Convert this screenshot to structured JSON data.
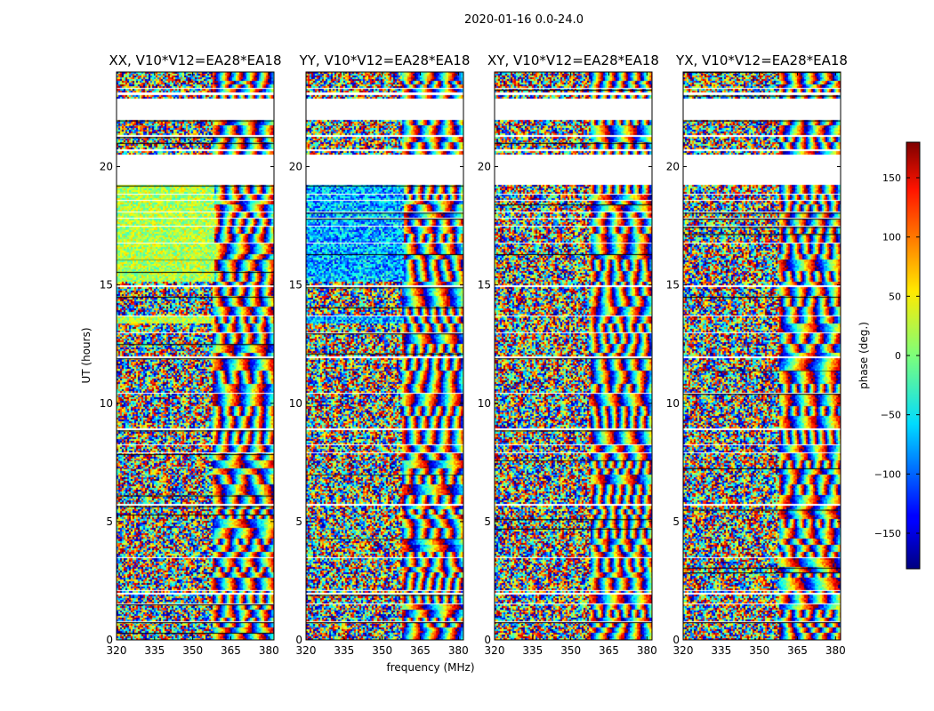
{
  "figure_title": "2020-01-16 0.0-24.0",
  "chart_data": [
    {
      "type": "heatmap",
      "title": "XX, V10*V12=EA28*EA18",
      "xlabel": "frequency (MHz)",
      "ylabel": "UT (hours)",
      "xlim": [
        320,
        382
      ],
      "ylim": [
        0,
        24
      ],
      "xticks": [
        320,
        335,
        350,
        365,
        380
      ],
      "yticks": [
        0,
        5,
        10,
        15,
        20
      ],
      "value": "phase (deg.)",
      "texture": "xx"
    },
    {
      "type": "heatmap",
      "title": "YY, V10*V12=EA28*EA18",
      "xlabel": "frequency (MHz)",
      "ylabel": "UT (hours)",
      "xlim": [
        320,
        382
      ],
      "ylim": [
        0,
        24
      ],
      "xticks": [
        320,
        335,
        350,
        365,
        380
      ],
      "yticks": [
        0,
        5,
        10,
        15,
        20
      ],
      "value": "phase (deg.)",
      "texture": "yy"
    },
    {
      "type": "heatmap",
      "title": "XY, V10*V12=EA28*EA18",
      "xlabel": "frequency (MHz)",
      "ylabel": "UT (hours)",
      "xlim": [
        320,
        382
      ],
      "ylim": [
        0,
        24
      ],
      "xticks": [
        320,
        335,
        350,
        365,
        380
      ],
      "yticks": [
        0,
        5,
        10,
        15,
        20
      ],
      "value": "phase (deg.)",
      "texture": "noise"
    },
    {
      "type": "heatmap",
      "title": "YX, V10*V12=EA28*EA18",
      "xlabel": "frequency (MHz)",
      "ylabel": "UT (hours)",
      "xlim": [
        320,
        382
      ],
      "ylim": [
        0,
        24
      ],
      "xticks": [
        320,
        335,
        350,
        365,
        380
      ],
      "yticks": [
        0,
        5,
        10,
        15,
        20
      ],
      "value": "phase (deg.)",
      "texture": "noise"
    }
  ],
  "xlabel": "frequency (MHz)",
  "ylabel": "UT (hours)",
  "colorbar": {
    "label": "phase (deg.)",
    "range": [
      -180,
      180
    ],
    "ticks": [
      -150,
      -100,
      -50,
      0,
      50,
      100,
      150
    ],
    "tick_labels": [
      "−150",
      "−100",
      "−50",
      "0",
      "50",
      "100",
      "150"
    ],
    "colormap": "jet"
  },
  "data_rows_ut": [
    [
      0.0,
      0.3
    ],
    [
      0.35,
      0.6
    ],
    [
      0.6,
      0.75
    ],
    [
      0.85,
      1.0
    ],
    [
      1.0,
      1.3
    ],
    [
      1.35,
      1.5
    ],
    [
      1.55,
      1.9
    ],
    [
      2.0,
      2.05
    ],
    [
      2.15,
      2.6
    ],
    [
      2.65,
      2.85
    ],
    [
      2.9,
      3.05
    ],
    [
      3.15,
      3.45
    ],
    [
      3.5,
      3.7
    ],
    [
      3.75,
      4.0
    ],
    [
      4.05,
      4.3
    ],
    [
      4.35,
      4.7
    ],
    [
      4.75,
      5.1
    ],
    [
      5.15,
      5.3
    ],
    [
      5.35,
      5.5
    ],
    [
      5.55,
      5.65
    ],
    [
      5.75,
      6.1
    ],
    [
      6.15,
      6.55
    ],
    [
      6.6,
      7.0
    ],
    [
      7.05,
      7.25
    ],
    [
      7.3,
      7.6
    ],
    [
      7.65,
      7.85
    ],
    [
      7.95,
      8.2
    ],
    [
      8.3,
      8.85
    ],
    [
      8.95,
      9.45
    ],
    [
      9.5,
      9.9
    ],
    [
      9.95,
      10.4
    ],
    [
      10.45,
      10.8
    ],
    [
      10.85,
      11.4
    ],
    [
      11.45,
      11.9
    ],
    [
      12.0,
      12.1
    ],
    [
      12.15,
      12.5
    ],
    [
      12.55,
      12.95
    ],
    [
      13.0,
      13.35
    ],
    [
      13.4,
      13.65
    ],
    [
      13.75,
      14.05
    ],
    [
      14.1,
      14.5
    ],
    [
      14.6,
      14.9
    ],
    [
      15.0,
      15.1
    ],
    [
      15.2,
      15.55
    ],
    [
      15.6,
      16.1
    ],
    [
      16.15,
      16.3
    ],
    [
      16.35,
      16.75
    ],
    [
      16.8,
      17.15
    ],
    [
      17.2,
      17.45
    ],
    [
      17.55,
      17.8
    ],
    [
      17.85,
      18.05
    ],
    [
      18.15,
      18.4
    ],
    [
      18.45,
      18.55
    ],
    [
      18.6,
      18.8
    ],
    [
      18.9,
      19.2
    ],
    [
      20.55,
      20.65
    ],
    [
      20.8,
      21.0
    ],
    [
      21.05,
      21.25
    ],
    [
      21.35,
      21.75
    ],
    [
      21.8,
      21.95
    ],
    [
      22.9,
      23.0
    ],
    [
      23.15,
      23.25
    ],
    [
      23.35,
      23.45
    ],
    [
      23.5,
      23.6
    ],
    [
      23.65,
      24.0
    ]
  ]
}
